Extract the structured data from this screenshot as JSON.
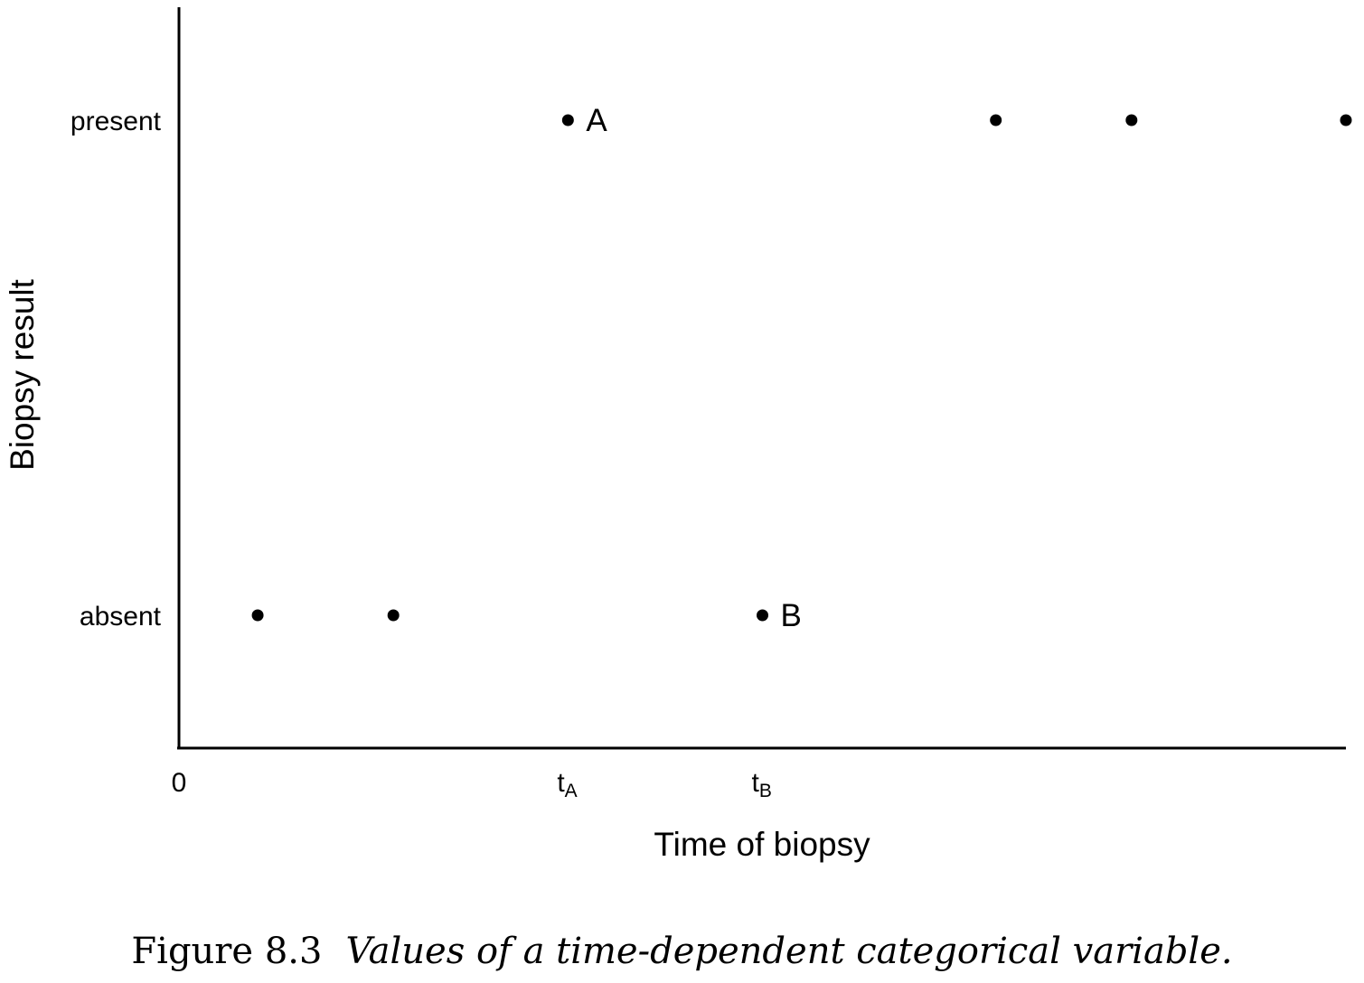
{
  "chart_data": {
    "type": "scatter",
    "xlabel": "Time of biopsy",
    "ylabel": "Biopsy result",
    "y_categories": [
      "absent",
      "present"
    ],
    "x_ticks": [
      {
        "value": 0,
        "main": "0",
        "sub": ""
      },
      {
        "value": 4.3,
        "main": "t",
        "sub": "A"
      },
      {
        "value": 6.45,
        "main": "t",
        "sub": "B"
      }
    ],
    "xlim": [
      0,
      12.9
    ],
    "points": [
      {
        "x": 0.87,
        "y": "absent",
        "label": ""
      },
      {
        "x": 2.37,
        "y": "absent",
        "label": ""
      },
      {
        "x": 4.3,
        "y": "present",
        "label": "A"
      },
      {
        "x": 6.45,
        "y": "absent",
        "label": "B"
      },
      {
        "x": 9.03,
        "y": "present",
        "label": ""
      },
      {
        "x": 10.53,
        "y": "present",
        "label": ""
      },
      {
        "x": 12.9,
        "y": "present",
        "label": ""
      }
    ],
    "grid": false,
    "legend": "none",
    "colors": {
      "point": "#000000",
      "axis": "#000000"
    }
  },
  "caption": {
    "number": "Figure 8.3",
    "text": "Values of a time-dependent categorical variable."
  }
}
